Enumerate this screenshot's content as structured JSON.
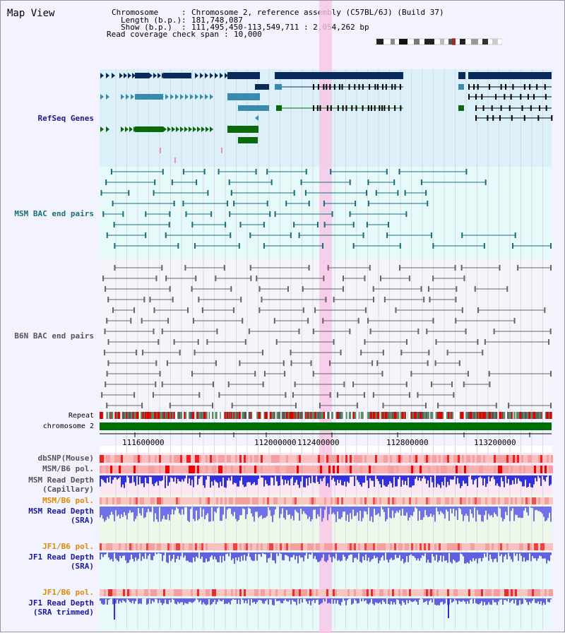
{
  "page": {
    "title": "Map View"
  },
  "info": {
    "chromosome_key": "Chromosome",
    "chromosome_val": "Chromosome 2, reference assembly (C57BL/6J) (Build 37)",
    "length_key": "Length (b.p.)",
    "length_val": "181,748,087",
    "show_key": "Show (b.p.)",
    "show_val": "111,495,450-113,549,711 : 2,054,262 bp",
    "span_key": "Read coverage check span",
    "span_val": "10,000"
  },
  "tracks": {
    "refseq": "RefSeq Genes",
    "msm_bac": "MSM BAC end pairs",
    "b6n_bac": "B6N BAC end pairs",
    "repeat": "Repeat",
    "chromosome": "chromosome 2",
    "dbsnp": "dbSNP(Mouse)",
    "msm_b6_pol_1": "MSM/B6 pol.",
    "msm_read_cap_1": "MSM Read Depth",
    "msm_read_cap_2": "(Capillary)",
    "msm_b6_pol_2": "MSM/B6 pol.",
    "msm_read_sra_1": "MSM Read Depth",
    "msm_read_sra_2": "(SRA)",
    "jf1_b6_pol_1": "JF1/B6 pol.",
    "jf1_read_sra_1": "JF1 Read Depth",
    "jf1_read_sra_2": "(SRA)",
    "jf1_b6_pol_2": "JF1/B6 pol.",
    "jf1_read_trim_1": "JF1 Read Depth",
    "jf1_read_trim_2": "(SRA trimmed)"
  },
  "axis_ticks": [
    "111600000",
    "112000000",
    "112400000",
    "112800000",
    "113200000"
  ],
  "colors": {
    "refseq_label": "#1a1a8c",
    "msm_label": "#1a6e7a",
    "b6n_label": "#555555",
    "orange_label": "#e08a00",
    "blue_label": "#1a1a9c",
    "gray_label": "#555555",
    "highlight": "#f7c6e6",
    "gene_dark": "#0a2a5a",
    "gene_mid": "#3a8ab0",
    "gene_green": "#0a6a0a",
    "chrom_green": "#007000"
  }
}
